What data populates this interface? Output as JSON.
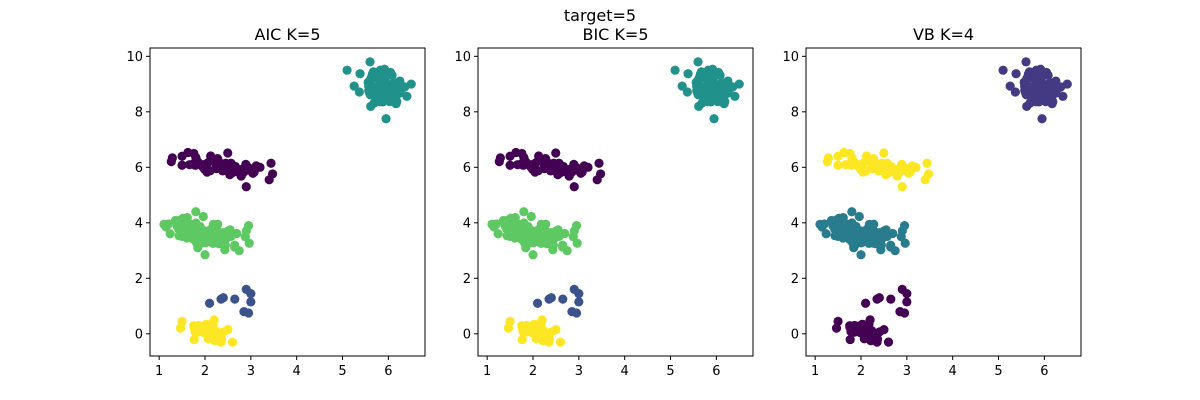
{
  "suptitle": "target=5",
  "chart_data": [
    {
      "type": "scatter",
      "title": "AIC K=5",
      "xlabel": "",
      "ylabel": "",
      "xlim": [
        0.8,
        6.8
      ],
      "ylim": [
        -0.8,
        10.3
      ],
      "xticks": [
        1,
        2,
        3,
        4,
        5,
        6
      ],
      "yticks": [
        0,
        2,
        4,
        6,
        8,
        10
      ],
      "grid": false,
      "clusters": [
        {
          "color": "#440154",
          "center": [
            2.4,
            6.05
          ],
          "spread": [
            0.45,
            0.18
          ],
          "n": 65,
          "seed": 11,
          "extra": [
            [
              1.5,
              6.4
            ],
            [
              3.4,
              5.55
            ],
            [
              2.9,
              5.3
            ],
            [
              3.2,
              6.0
            ]
          ]
        },
        {
          "color": "#21918c",
          "center": [
            5.85,
            8.85
          ],
          "spread": [
            0.22,
            0.28
          ],
          "n": 75,
          "seed": 23,
          "extra": [
            [
              5.1,
              9.5
            ],
            [
              6.5,
              9.0
            ],
            [
              5.95,
              7.75
            ],
            [
              5.6,
              9.8
            ]
          ]
        },
        {
          "color": "#5ec962",
          "center": [
            2.05,
            3.6
          ],
          "spread": [
            0.4,
            0.25
          ],
          "n": 80,
          "seed": 37,
          "extra": [
            [
              1.15,
              3.85
            ],
            [
              2.0,
              2.85
            ],
            [
              2.95,
              3.9
            ],
            [
              1.8,
              4.4
            ]
          ]
        },
        {
          "color": "#3b528b",
          "center": [
            2.65,
            1.2
          ],
          "spread": [
            0.2,
            0.22
          ],
          "n": 0,
          "seed": 41,
          "extra": [
            [
              2.1,
              1.1
            ],
            [
              2.35,
              1.25
            ],
            [
              2.65,
              1.25
            ],
            [
              2.85,
              0.8
            ],
            [
              2.95,
              0.75
            ],
            [
              2.9,
              1.6
            ],
            [
              3.0,
              1.45
            ],
            [
              3.0,
              1.15
            ],
            [
              2.4,
              1.3
            ]
          ]
        },
        {
          "color": "#fde725",
          "center": [
            2.05,
            0.15
          ],
          "spread": [
            0.22,
            0.18
          ],
          "n": 40,
          "seed": 53,
          "extra": [
            [
              1.5,
              0.45
            ],
            [
              2.6,
              -0.3
            ],
            [
              2.5,
              0.15
            ],
            [
              2.35,
              -0.3
            ]
          ]
        }
      ]
    },
    {
      "type": "scatter",
      "title": "BIC K=5",
      "xlabel": "",
      "ylabel": "",
      "xlim": [
        0.8,
        6.8
      ],
      "ylim": [
        -0.8,
        10.3
      ],
      "xticks": [
        1,
        2,
        3,
        4,
        5,
        6
      ],
      "yticks": [
        0,
        2,
        4,
        6,
        8,
        10
      ],
      "grid": false,
      "clusters": [
        {
          "color": "#440154",
          "center": [
            2.4,
            6.05
          ],
          "spread": [
            0.45,
            0.18
          ],
          "n": 65,
          "seed": 11,
          "extra": [
            [
              1.5,
              6.4
            ],
            [
              3.4,
              5.55
            ],
            [
              2.9,
              5.3
            ],
            [
              3.2,
              6.0
            ]
          ]
        },
        {
          "color": "#21918c",
          "center": [
            5.85,
            8.85
          ],
          "spread": [
            0.22,
            0.28
          ],
          "n": 75,
          "seed": 23,
          "extra": [
            [
              5.1,
              9.5
            ],
            [
              6.5,
              9.0
            ],
            [
              5.95,
              7.75
            ],
            [
              5.6,
              9.8
            ]
          ]
        },
        {
          "color": "#5ec962",
          "center": [
            2.05,
            3.6
          ],
          "spread": [
            0.4,
            0.25
          ],
          "n": 80,
          "seed": 37,
          "extra": [
            [
              1.15,
              3.85
            ],
            [
              2.0,
              2.85
            ],
            [
              2.95,
              3.9
            ],
            [
              1.8,
              4.4
            ]
          ]
        },
        {
          "color": "#3b528b",
          "center": [
            2.65,
            1.2
          ],
          "spread": [
            0.2,
            0.22
          ],
          "n": 0,
          "seed": 41,
          "extra": [
            [
              2.1,
              1.1
            ],
            [
              2.35,
              1.25
            ],
            [
              2.65,
              1.25
            ],
            [
              2.85,
              0.8
            ],
            [
              2.95,
              0.75
            ],
            [
              2.9,
              1.6
            ],
            [
              3.0,
              1.45
            ],
            [
              3.0,
              1.15
            ],
            [
              2.4,
              1.3
            ]
          ]
        },
        {
          "color": "#fde725",
          "center": [
            2.05,
            0.15
          ],
          "spread": [
            0.22,
            0.18
          ],
          "n": 40,
          "seed": 53,
          "extra": [
            [
              1.5,
              0.45
            ],
            [
              2.6,
              -0.3
            ],
            [
              2.5,
              0.15
            ],
            [
              2.35,
              -0.3
            ]
          ]
        }
      ]
    },
    {
      "type": "scatter",
      "title": "VB K=4",
      "xlabel": "",
      "ylabel": "",
      "xlim": [
        0.8,
        6.8
      ],
      "ylim": [
        -0.8,
        10.3
      ],
      "xticks": [
        1,
        2,
        3,
        4,
        5,
        6
      ],
      "yticks": [
        0,
        2,
        4,
        6,
        8,
        10
      ],
      "grid": false,
      "clusters": [
        {
          "color": "#fde725",
          "center": [
            2.4,
            6.05
          ],
          "spread": [
            0.45,
            0.18
          ],
          "n": 65,
          "seed": 11,
          "extra": [
            [
              1.5,
              6.4
            ],
            [
              3.4,
              5.55
            ],
            [
              2.9,
              5.3
            ],
            [
              3.2,
              6.0
            ]
          ]
        },
        {
          "color": "#443a83",
          "center": [
            5.85,
            8.85
          ],
          "spread": [
            0.22,
            0.28
          ],
          "n": 75,
          "seed": 23,
          "extra": [
            [
              5.1,
              9.5
            ],
            [
              6.5,
              9.0
            ],
            [
              5.95,
              7.75
            ],
            [
              5.6,
              9.8
            ]
          ]
        },
        {
          "color": "#287c8e",
          "center": [
            2.05,
            3.6
          ],
          "spread": [
            0.4,
            0.25
          ],
          "n": 80,
          "seed": 37,
          "extra": [
            [
              1.15,
              3.85
            ],
            [
              2.0,
              2.85
            ],
            [
              2.95,
              3.9
            ],
            [
              1.8,
              4.4
            ]
          ]
        },
        {
          "color": "#440154",
          "center": [
            2.65,
            1.2
          ],
          "spread": [
            0.2,
            0.22
          ],
          "n": 0,
          "seed": 41,
          "extra": [
            [
              2.1,
              1.1
            ],
            [
              2.35,
              1.25
            ],
            [
              2.65,
              1.25
            ],
            [
              2.85,
              0.8
            ],
            [
              2.95,
              0.75
            ],
            [
              2.9,
              1.6
            ],
            [
              3.0,
              1.45
            ],
            [
              3.0,
              1.15
            ],
            [
              2.4,
              1.3
            ]
          ]
        },
        {
          "color": "#440154",
          "center": [
            2.05,
            0.15
          ],
          "spread": [
            0.22,
            0.18
          ],
          "n": 40,
          "seed": 53,
          "extra": [
            [
              1.5,
              0.45
            ],
            [
              2.6,
              -0.3
            ],
            [
              2.5,
              0.15
            ],
            [
              2.35,
              -0.3
            ]
          ]
        }
      ]
    }
  ]
}
